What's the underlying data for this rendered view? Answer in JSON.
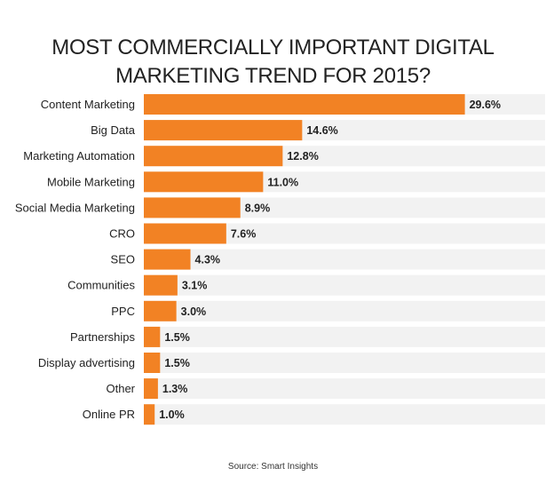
{
  "title_lines": [
    "MOST COMMERCIALLY IMPORTANT DIGITAL",
    "MARKETING TREND FOR 2015?"
  ],
  "source": "Source: Smart Insights",
  "colors": {
    "bar": "#f28224",
    "track": "#f2f2f2",
    "text": "#222222"
  },
  "chart_data": {
    "type": "bar",
    "orientation": "horizontal",
    "title": "MOST COMMERCIALLY IMPORTANT DIGITAL MARKETING TREND FOR 2015?",
    "categories": [
      "Content Marketing",
      "Big Data",
      "Marketing Automation",
      "Mobile Marketing",
      "Social Media Marketing",
      "CRO",
      "SEO",
      "Communities",
      "PPC",
      "Partnerships",
      "Display advertising",
      "Other",
      "Online PR"
    ],
    "values": [
      29.6,
      14.6,
      12.8,
      11.0,
      8.9,
      7.6,
      4.3,
      3.1,
      3.0,
      1.5,
      1.5,
      1.3,
      1.0
    ],
    "labels": [
      "29.6%",
      "14.6%",
      "12.8%",
      "11.0%",
      "8.9%",
      "7.6%",
      "4.3%",
      "3.1%",
      "3.0%",
      "1.5%",
      "1.5%",
      "1.3%",
      "1.0%"
    ],
    "xlim": [
      0,
      37
    ],
    "unit": "%",
    "grid": false,
    "legend": "none"
  }
}
